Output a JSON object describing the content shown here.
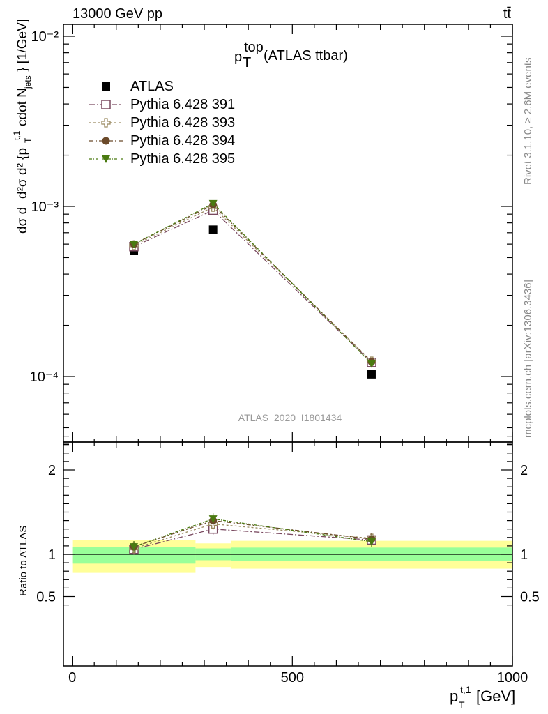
{
  "header": {
    "beam": "13000 GeV pp",
    "process": "tt̄"
  },
  "side_labels": {
    "rivet": "Rivet 3.1.10, ≥ 2.6M events",
    "mcplots": "mcplots.cern.ch [arXiv:1306.3436]"
  },
  "analysis_tag": "ATLAS_2020_I1801434",
  "plot_title": {
    "main": "p",
    "sub": "T",
    "sup": "top",
    "tail": "(ATLAS ttbar)"
  },
  "y_axis_label": "d²σ/d²{p_T^{t,1} cdot N_jets} [1/GeV] (1/σ normalised)",
  "ratio_ylabel": "Ratio to ATLAS",
  "x_axis_label": {
    "main": "p",
    "sub": "T",
    "sup": "t,1",
    "unit": "[GeV]"
  },
  "legend": [
    {
      "name": "ATLAS",
      "marker": "filled-square",
      "color": "#000000"
    },
    {
      "name": "Pythia 6.428 391",
      "marker": "open-square",
      "color": "#7a4a60"
    },
    {
      "name": "Pythia 6.428 393",
      "marker": "open-cross",
      "color": "#9a8a60"
    },
    {
      "name": "Pythia 6.428 394",
      "marker": "filled-circle",
      "color": "#6b4a2a"
    },
    {
      "name": "Pythia 6.428 395",
      "marker": "filled-triangle",
      "color": "#4a7a10"
    }
  ],
  "chart_data": [
    {
      "type": "line",
      "title": "p_T^top (ATLAS ttbar)",
      "xlabel": "p_T^{t,1} [GeV]",
      "ylabel": "d²σ/d²{p_T^{t,1} cdot N_jets} [1/GeV]",
      "xlim": [
        -20,
        1000
      ],
      "ylim": [
        4e-05,
        0.012
      ],
      "y_scale": "log",
      "x_ticks": [
        0,
        500,
        1000
      ],
      "y_tick_labels": [
        "10⁻⁴",
        "10⁻³",
        "10⁻²"
      ],
      "x": [
        140,
        320,
        680
      ],
      "series": [
        {
          "name": "ATLAS",
          "values": [
            0.00055,
            0.00073,
            0.000103
          ]
        },
        {
          "name": "Pythia 6.428 391",
          "values": [
            0.00058,
            0.00095,
            0.000121
          ]
        },
        {
          "name": "Pythia 6.428 393",
          "values": [
            0.00059,
            0.00099,
            0.000123
          ]
        },
        {
          "name": "Pythia 6.428 394",
          "values": [
            0.0006,
            0.00102,
            0.000122
          ]
        },
        {
          "name": "Pythia 6.428 395",
          "values": [
            0.0006,
            0.00104,
            0.000119
          ]
        }
      ],
      "legend_position": "top-left"
    },
    {
      "type": "line",
      "ylabel": "Ratio to ATLAS",
      "xlabel": "p_T^{t,1} [GeV]",
      "xlim": [
        -20,
        1000
      ],
      "ylim": [
        0.35,
        2.5
      ],
      "y_ticks": [
        0.5,
        1,
        2
      ],
      "x": [
        140,
        320,
        680
      ],
      "reference_line": 1,
      "uncertainty_bins": [
        {
          "xlow": 0,
          "xhigh": 280,
          "green": [
            0.89,
            1.09
          ],
          "yellow": [
            0.78,
            1.17
          ]
        },
        {
          "xlow": 280,
          "xhigh": 360,
          "green": [
            0.93,
            1.07
          ],
          "yellow": [
            0.85,
            1.13
          ]
        },
        {
          "xlow": 360,
          "xhigh": 1000,
          "green": [
            0.92,
            1.08
          ],
          "yellow": [
            0.83,
            1.16
          ]
        }
      ],
      "series": [
        {
          "name": "Pythia 6.428 391",
          "values": [
            1.06,
            1.3,
            1.17
          ]
        },
        {
          "name": "Pythia 6.428 393",
          "values": [
            1.07,
            1.36,
            1.19
          ]
        },
        {
          "name": "Pythia 6.428 394",
          "values": [
            1.09,
            1.4,
            1.18
          ]
        },
        {
          "name": "Pythia 6.428 395",
          "values": [
            1.09,
            1.42,
            1.15
          ]
        }
      ]
    }
  ]
}
